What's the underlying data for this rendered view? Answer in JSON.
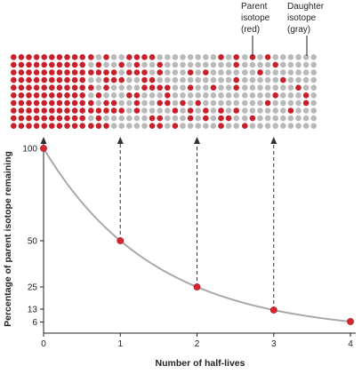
{
  "chart_data": {
    "type": "line",
    "xlabel": "Number of half-lives",
    "ylabel": "Percentage of parent isotope remaining",
    "x_ticks": [
      "0",
      "1",
      "2",
      "3",
      "4"
    ],
    "y_ticks": [
      "6",
      "13",
      "25",
      "50",
      "100"
    ],
    "xlim": [
      0,
      4
    ],
    "ylim": [
      0,
      100
    ],
    "series": [
      {
        "x": [
          0,
          1,
          2,
          3,
          4
        ],
        "y": [
          100,
          50,
          25,
          12.5,
          6.25
        ]
      }
    ],
    "grids": [
      {
        "parent_count": 100,
        "daughter_count": 0
      },
      {
        "parent_count": 50,
        "daughter_count": 50
      },
      {
        "parent_count": 25,
        "daughter_count": 75
      },
      {
        "parent_count": 13,
        "daughter_count": 87
      },
      {
        "parent_count": 6,
        "daughter_count": 94
      }
    ],
    "annotations": {
      "parent": [
        "Parent",
        "isotope",
        "(red)"
      ],
      "daughter": [
        "Daughter",
        "isotope",
        "(gray)"
      ]
    },
    "colors": {
      "parent": "#c8202a",
      "daughter": "#b9b9b9",
      "curve": "#a9a9a9",
      "point": "#d8262e"
    }
  }
}
